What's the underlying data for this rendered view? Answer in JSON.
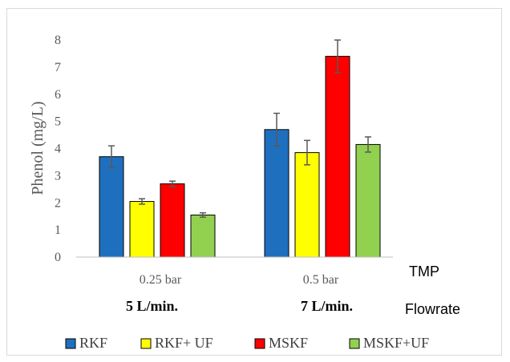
{
  "chart_data": {
    "type": "bar",
    "categories": [
      "0.25 bar",
      "0.5 bar"
    ],
    "subcategories": [
      "5 L/min.",
      "7 L/min."
    ],
    "extra_axis_labels": [
      "TMP",
      "Flowrate"
    ],
    "ylabel": "Phenol (mg/L)",
    "ylim": [
      0,
      8
    ],
    "yticks": [
      0,
      1,
      2,
      3,
      4,
      5,
      6,
      7,
      8
    ],
    "grid": false,
    "legend": "bottom",
    "series": [
      {
        "name": "RKF",
        "color": "#1f6fbf",
        "values": [
          3.7,
          4.7
        ],
        "errors": [
          0.4,
          0.6
        ]
      },
      {
        "name": "RKF+ UF",
        "color": "#ffff00",
        "values": [
          2.05,
          3.85
        ],
        "errors": [
          0.1,
          0.45
        ]
      },
      {
        "name": "MSKF",
        "color": "#ff0000",
        "values": [
          2.7,
          7.4
        ],
        "errors": [
          0.1,
          0.6
        ]
      },
      {
        "name": "MSKF+UF",
        "color": "#92d050",
        "values": [
          1.55,
          4.15
        ],
        "errors": [
          0.08,
          0.28
        ]
      }
    ]
  }
}
